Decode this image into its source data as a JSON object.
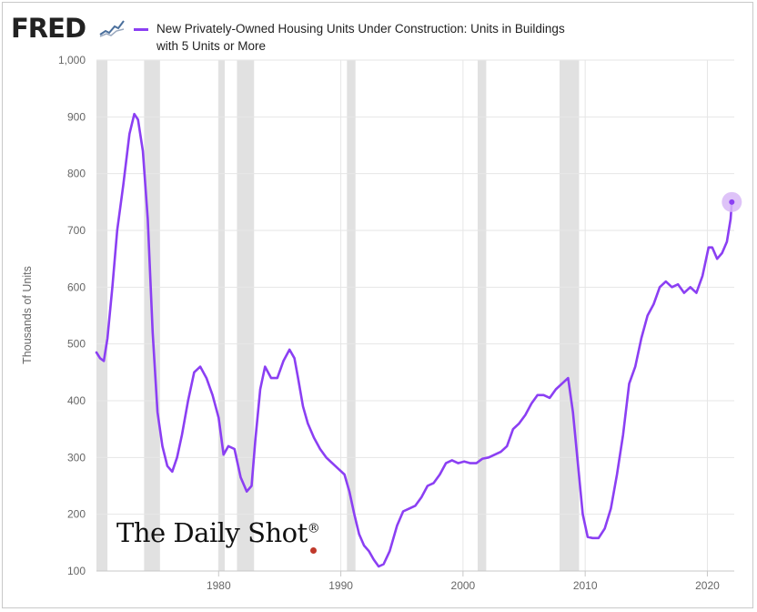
{
  "header": {
    "logo_text": "FRED",
    "logo_icon": "line-graph-icon"
  },
  "legend": {
    "line1": "New Privately-Owned Housing Units Under Construction: Units in Buildings",
    "line2": "with 5 Units or More"
  },
  "watermark": {
    "text": "The Daily Shot",
    "mark": "®"
  },
  "colors": {
    "series": "#8b3ff3",
    "recession_band": "#e1e1e1",
    "highlight_dot": "#d8b8f7"
  },
  "chart_data": {
    "type": "line",
    "title": "New Privately-Owned Housing Units Under Construction: Units in Buildings with 5 Units or More",
    "xlabel": "",
    "ylabel": "Thousands of Units",
    "xlim": [
      1970.0,
      2022.2
    ],
    "ylim": [
      100,
      1000
    ],
    "x_ticks": [
      1980,
      1990,
      2000,
      2010,
      2020
    ],
    "y_ticks": [
      100,
      200,
      300,
      400,
      500,
      600,
      700,
      800,
      900,
      "1,000"
    ],
    "grid": "horizontal and vertical",
    "legend_position": "top",
    "recessions": [
      [
        1970.0,
        1970.9
      ],
      [
        1973.9,
        1975.2
      ],
      [
        1980.0,
        1980.5
      ],
      [
        1981.5,
        1982.9
      ],
      [
        1990.5,
        1991.2
      ],
      [
        2001.2,
        2001.9
      ],
      [
        2007.9,
        2009.5
      ]
    ],
    "series": [
      {
        "name": "New Privately-Owned Housing Units Under Construction: Units in Buildings with 5 Units or More",
        "x": [
          1970.0,
          1970.3,
          1970.6,
          1970.9,
          1971.3,
          1971.7,
          1972.2,
          1972.7,
          1973.1,
          1973.4,
          1973.8,
          1974.2,
          1974.6,
          1975.0,
          1975.4,
          1975.8,
          1976.2,
          1976.6,
          1977.0,
          1977.5,
          1978.0,
          1978.5,
          1979.0,
          1979.5,
          1980.0,
          1980.4,
          1980.8,
          1981.3,
          1981.8,
          1982.3,
          1982.7,
          1983.0,
          1983.4,
          1983.8,
          1984.3,
          1984.8,
          1985.3,
          1985.8,
          1986.2,
          1986.5,
          1986.9,
          1987.3,
          1987.8,
          1988.3,
          1988.8,
          1989.3,
          1989.8,
          1990.3,
          1990.7,
          1991.1,
          1991.5,
          1991.9,
          1992.3,
          1992.7,
          1993.1,
          1993.5,
          1994.0,
          1994.6,
          1995.1,
          1995.6,
          1996.1,
          1996.6,
          1997.1,
          1997.6,
          1998.1,
          1998.6,
          1999.1,
          1999.6,
          2000.1,
          2000.6,
          2001.1,
          2001.6,
          2002.1,
          2002.6,
          2003.1,
          2003.6,
          2004.1,
          2004.6,
          2005.1,
          2005.6,
          2006.1,
          2006.6,
          2007.1,
          2007.6,
          2008.1,
          2008.6,
          2009.0,
          2009.4,
          2009.8,
          2010.2,
          2010.6,
          2011.1,
          2011.6,
          2012.1,
          2012.6,
          2013.1,
          2013.6,
          2014.1,
          2014.6,
          2015.1,
          2015.6,
          2016.1,
          2016.6,
          2017.1,
          2017.6,
          2018.1,
          2018.6,
          2019.1,
          2019.6,
          2020.1,
          2020.4,
          2020.8,
          2021.2,
          2021.6,
          2021.9,
          2022.0
        ],
        "y": [
          485,
          475,
          470,
          510,
          600,
          700,
          780,
          870,
          905,
          895,
          840,
          720,
          520,
          380,
          320,
          285,
          275,
          300,
          340,
          400,
          450,
          460,
          440,
          410,
          370,
          305,
          320,
          315,
          265,
          240,
          250,
          330,
          420,
          460,
          440,
          440,
          470,
          490,
          475,
          440,
          390,
          360,
          335,
          315,
          300,
          290,
          280,
          270,
          240,
          200,
          165,
          145,
          135,
          120,
          108,
          112,
          135,
          180,
          205,
          210,
          215,
          230,
          250,
          255,
          270,
          290,
          295,
          290,
          293,
          290,
          290,
          298,
          300,
          305,
          310,
          320,
          350,
          360,
          375,
          395,
          410,
          410,
          405,
          420,
          430,
          440,
          380,
          290,
          200,
          160,
          158,
          158,
          175,
          210,
          270,
          340,
          430,
          460,
          510,
          550,
          570,
          600,
          610,
          600,
          605,
          590,
          600,
          590,
          620,
          670,
          670,
          650,
          660,
          680,
          720,
          750
        ]
      }
    ]
  }
}
